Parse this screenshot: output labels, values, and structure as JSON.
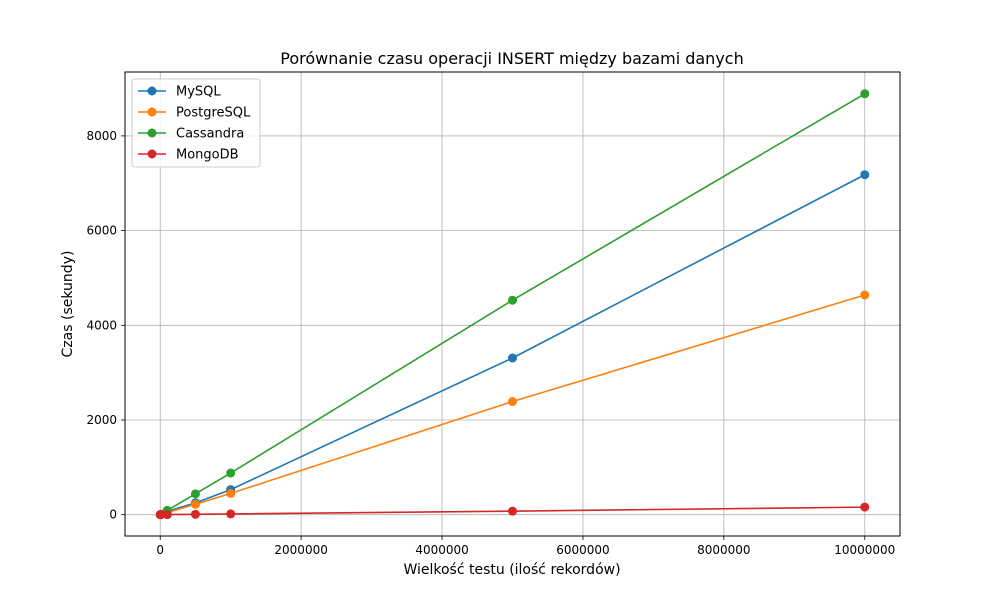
{
  "chart_data": {
    "type": "line",
    "title": "Porównanie czasu operacji INSERT między bazami danych",
    "xlabel": "Wielkość testu (ilość rekordów)",
    "ylabel": "Czas (sekundy)",
    "x": [
      1000,
      10000,
      100000,
      500000,
      1000000,
      5000000,
      10000000
    ],
    "xlim": [
      -500000,
      10500000
    ],
    "ylim": [
      -450,
      9350
    ],
    "xticks": [
      0,
      2000000,
      4000000,
      6000000,
      8000000,
      10000000
    ],
    "xtick_labels": [
      "0",
      "2000000",
      "4000000",
      "6000000",
      "8000000",
      "10000000"
    ],
    "yticks": [
      0,
      2000,
      4000,
      6000,
      8000
    ],
    "ytick_labels": [
      "0",
      "2000",
      "4000",
      "6000",
      "8000"
    ],
    "grid": true,
    "legend": "top-left",
    "series": [
      {
        "name": "MySQL",
        "color": "#1f77b4",
        "values": [
          1,
          8,
          70,
          250,
          530,
          3310,
          7180
        ]
      },
      {
        "name": "PostgreSQL",
        "color": "#ff7f0e",
        "values": [
          1,
          6,
          45,
          220,
          450,
          2390,
          4640
        ]
      },
      {
        "name": "Cassandra",
        "color": "#2ca02c",
        "values": [
          2,
          10,
          90,
          440,
          880,
          4530,
          8890
        ]
      },
      {
        "name": "MongoDB",
        "color": "#d62728",
        "values": [
          0.1,
          0.3,
          2,
          8,
          16,
          75,
          160
        ]
      }
    ]
  }
}
